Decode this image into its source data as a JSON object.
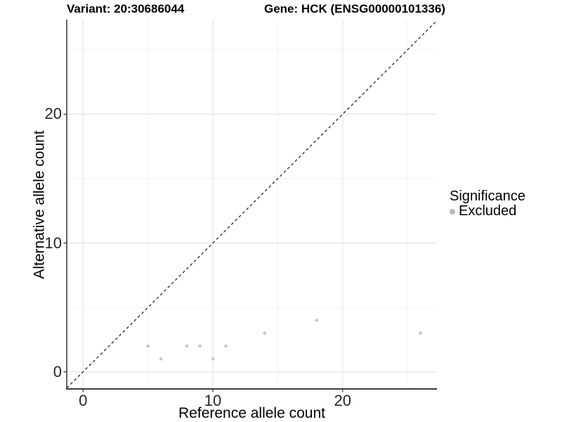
{
  "header": {
    "variant_title": "Variant: 20:30686044",
    "gene_title": "Gene: HCK (ENSG00000101336)"
  },
  "chart_data": {
    "type": "scatter",
    "title": "Variant: 20:30686044  /  Gene: HCK (ENSG00000101336)",
    "xlabel": "Reference allele count",
    "ylabel": "Alternative allele count",
    "xlim": [
      -1.26,
      27.27
    ],
    "ylim": [
      -1.33,
      27.34
    ],
    "x_major_ticks": [
      0,
      10,
      20
    ],
    "x_tick_labels": [
      "0",
      "10",
      "20"
    ],
    "y_major_ticks": [
      0,
      10,
      20
    ],
    "y_tick_labels": [
      "0",
      "10",
      "20"
    ],
    "x_minor_ticks": [
      5,
      15,
      25
    ],
    "y_minor_ticks": [
      5,
      15,
      25
    ],
    "grid": true,
    "identity_line": {
      "equation": "y = x",
      "style": "dashed",
      "color": "#1a1a1a"
    },
    "series": [
      {
        "name": "Excluded",
        "color": "#c7c7c7",
        "points": [
          [
            5,
            2
          ],
          [
            6,
            1
          ],
          [
            8,
            2
          ],
          [
            9,
            2
          ],
          [
            10,
            1
          ],
          [
            11,
            2
          ],
          [
            14,
            3
          ],
          [
            18,
            4
          ],
          [
            26,
            3
          ]
        ]
      }
    ],
    "legend": {
      "title": "Significance",
      "position": "right",
      "items": [
        {
          "label": "Excluded",
          "color": "#b9b9b9"
        }
      ]
    },
    "colors": {
      "major_grid": "#e5e5e5",
      "minor_grid": "#f2f2f2",
      "axis_line": "#3c3c3c",
      "point": "#c7c7c7"
    }
  }
}
